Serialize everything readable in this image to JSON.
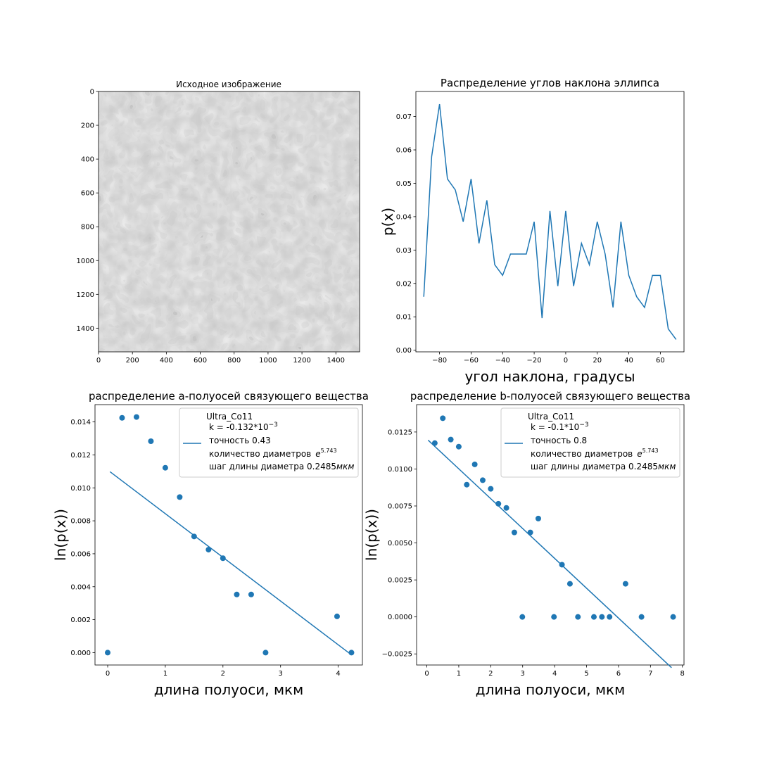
{
  "figure": {
    "image_panel": {
      "title": "Исходное изображение",
      "image_size": [
        1540,
        1540
      ],
      "xticks": [
        "0",
        "200",
        "400",
        "600",
        "800",
        "1000",
        "1200",
        "1400"
      ],
      "yticks": [
        "0",
        "200",
        "400",
        "600",
        "800",
        "1000",
        "1200",
        "1400"
      ]
    },
    "colors": {
      "series": "#1f77b4",
      "axes": "#000000",
      "background": "#ffffff"
    }
  },
  "chart_data": [
    {
      "id": "angles",
      "type": "line",
      "title": "Распределение углов наклона эллипса",
      "xlabel": "угол наклона, градусы",
      "ylabel": "p(x)",
      "xlim": [
        -95,
        75
      ],
      "ylim": [
        -0.0005,
        0.0775
      ],
      "xticks": [
        -80,
        -60,
        -40,
        -20,
        0,
        20,
        40,
        60
      ],
      "xtick_labels": [
        "−80",
        "−60",
        "−40",
        "−20",
        "0",
        "20",
        "40",
        "60"
      ],
      "yticks": [
        0.0,
        0.01,
        0.02,
        0.03,
        0.04,
        0.05,
        0.06,
        0.07
      ],
      "ytick_labels": [
        "0.00",
        "0.01",
        "0.02",
        "0.03",
        "0.04",
        "0.05",
        "0.06",
        "0.07"
      ],
      "grid": false,
      "series": [
        {
          "x": [
            -90,
            -85,
            -80,
            -75,
            -70,
            -65,
            -60,
            -55,
            -50,
            -45,
            -40,
            -35,
            -30,
            -25,
            -20,
            -15,
            -10,
            -5,
            0,
            5,
            10,
            15,
            20,
            25,
            30,
            35,
            40,
            45,
            50,
            55,
            60,
            65,
            70
          ],
          "y": [
            0.016,
            0.058,
            0.0737,
            0.0513,
            0.048,
            0.0385,
            0.0513,
            0.032,
            0.0449,
            0.0256,
            0.0224,
            0.0288,
            0.0288,
            0.0288,
            0.0385,
            0.0096,
            0.0417,
            0.0192,
            0.0417,
            0.0192,
            0.032,
            0.0256,
            0.0385,
            0.0288,
            0.0128,
            0.0385,
            0.0224,
            0.016,
            0.0128,
            0.0224,
            0.0224,
            0.0064,
            0.0032
          ]
        }
      ]
    },
    {
      "id": "a_semi",
      "type": "scatter",
      "title": "распределение a-полуосей связующего вещества",
      "xlabel": "длина полуоси, мкм",
      "ylabel": "ln(p(x))",
      "xlim": [
        -0.22,
        4.42
      ],
      "ylim": [
        -0.00075,
        0.01505
      ],
      "xticks": [
        0,
        1,
        2,
        3,
        4
      ],
      "xtick_labels": [
        "0",
        "1",
        "2",
        "3",
        "4"
      ],
      "yticks": [
        0.0,
        0.002,
        0.004,
        0.006,
        0.008,
        0.01,
        0.012,
        0.014
      ],
      "ytick_labels": [
        "0.000",
        "0.002",
        "0.004",
        "0.006",
        "0.008",
        "0.010",
        "0.012",
        "0.014"
      ],
      "grid": false,
      "points": {
        "x": [
          0,
          0.25,
          0.5,
          0.75,
          1.0,
          1.25,
          1.5,
          1.75,
          2.0,
          2.24,
          2.49,
          2.74,
          3.98,
          4.23
        ],
        "y": [
          0.0,
          0.01425,
          0.0143,
          0.01283,
          0.01122,
          0.00944,
          0.00705,
          0.00625,
          0.00573,
          0.00353,
          0.00353,
          0.0,
          0.0022,
          0.0
        ]
      },
      "fit_line": {
        "x": [
          0.04,
          4.21
        ],
        "y": [
          0.01098,
          -8e-05
        ]
      },
      "legend": {
        "location": "upper right",
        "title": "Ultra_Co11",
        "k_label": "k = -0.132*10",
        "k_exp": "−3",
        "accuracy": "точность 0.43",
        "count_label": "количество диаметров",
        "count_base": "e",
        "count_exp": "5.743",
        "step_label": "шаг длины диаметра 0.2485",
        "step_unit": "мкм"
      }
    },
    {
      "id": "b_semi",
      "type": "scatter",
      "title": "распределение b-полуосей связующего вещества",
      "xlabel": "длина полуоси, мкм",
      "ylabel": "ln(p(x))",
      "xlim": [
        -0.32,
        8.05
      ],
      "ylim": [
        -0.00325,
        0.01435
      ],
      "xticks": [
        0,
        1,
        2,
        3,
        4,
        5,
        6,
        7,
        8
      ],
      "xtick_labels": [
        "0",
        "1",
        "2",
        "3",
        "4",
        "5",
        "6",
        "7",
        "8"
      ],
      "yticks": [
        -0.0025,
        0.0,
        0.0025,
        0.005,
        0.0075,
        0.01,
        0.0125
      ],
      "ytick_labels": [
        "−0.0025",
        "0.0000",
        "0.0025",
        "0.0050",
        "0.0075",
        "0.0100",
        "0.0125"
      ],
      "grid": false,
      "points": {
        "x": [
          0.25,
          0.5,
          0.75,
          1.0,
          1.25,
          1.5,
          1.75,
          2.0,
          2.24,
          2.49,
          2.74,
          2.99,
          3.24,
          3.49,
          3.98,
          4.23,
          4.48,
          4.73,
          5.23,
          5.48,
          5.72,
          6.22,
          6.72,
          7.71
        ],
        "y": [
          0.01175,
          0.01343,
          0.01199,
          0.01151,
          0.00894,
          0.01031,
          0.00924,
          0.00866,
          0.00765,
          0.00737,
          0.00571,
          0.0,
          0.00571,
          0.00665,
          0.0,
          0.00353,
          0.00224,
          0.0,
          0.0,
          0.0,
          0.0,
          0.00224,
          0.0,
          0.0
        ]
      },
      "fit_line": {
        "x": [
          0.04,
          7.66
        ],
        "y": [
          0.01195,
          -0.00343
        ]
      },
      "legend": {
        "location": "upper right",
        "title": "Ultra_Co11",
        "k_label": "k = -0.1*10",
        "k_exp": "−3",
        "accuracy": "точность 0.8",
        "count_label": "количество диаметров",
        "count_base": "e",
        "count_exp": "5.743",
        "step_label": "шаг длины диаметра 0.2485",
        "step_unit": "мкм"
      }
    }
  ]
}
